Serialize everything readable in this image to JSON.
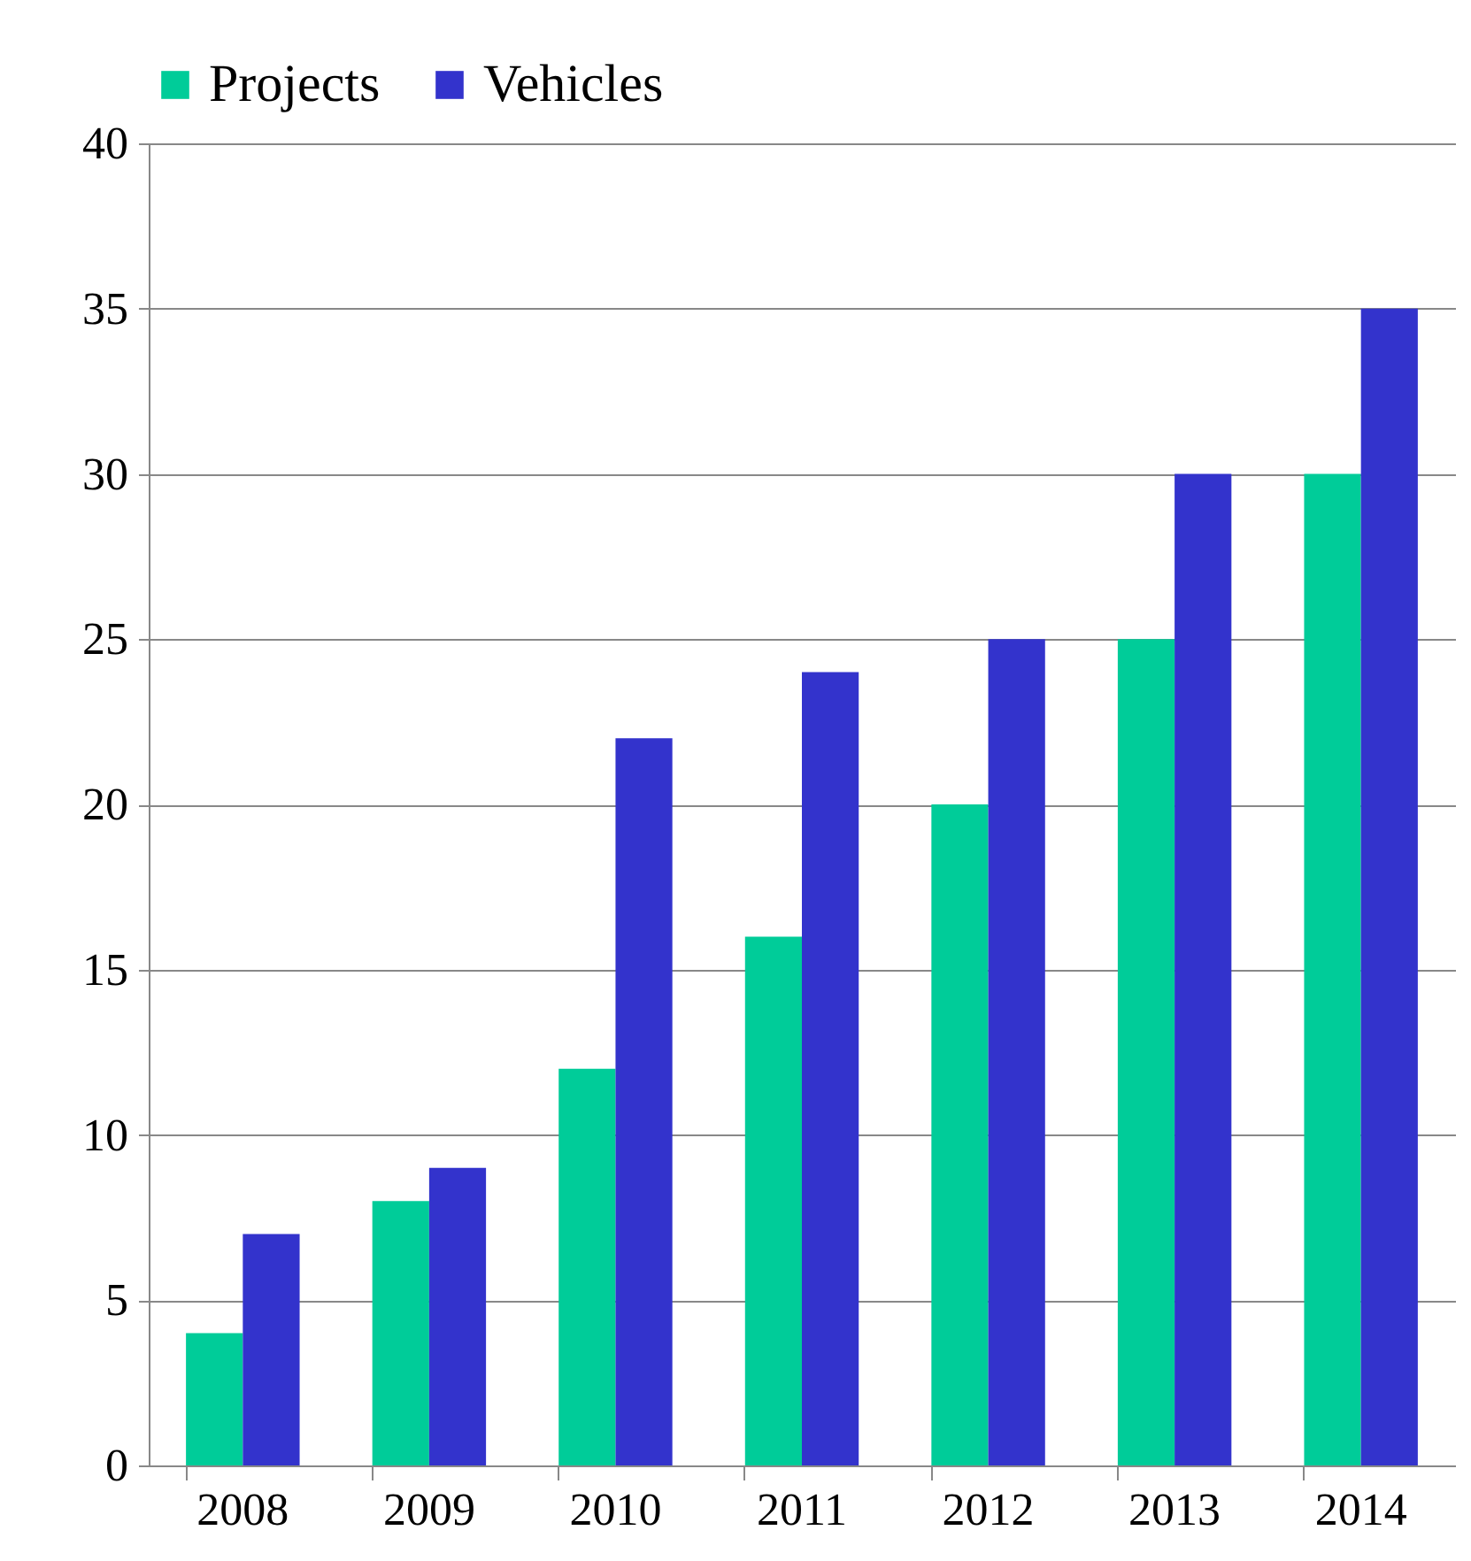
{
  "chart_data": {
    "type": "bar",
    "categories": [
      "2008",
      "2009",
      "2010",
      "2011",
      "2012",
      "2013",
      "2014"
    ],
    "series": [
      {
        "name": "Projects",
        "color": "#00cc99",
        "values": [
          4,
          8,
          12,
          16,
          20,
          25,
          30
        ]
      },
      {
        "name": "Vehicles",
        "color": "#3333cc",
        "values": [
          7,
          9,
          22,
          24,
          25,
          30,
          35
        ]
      }
    ],
    "ylim": [
      0,
      40
    ],
    "yticks": [
      0,
      5,
      10,
      15,
      20,
      25,
      30,
      35,
      40
    ],
    "grid": "y",
    "legend": "top"
  }
}
